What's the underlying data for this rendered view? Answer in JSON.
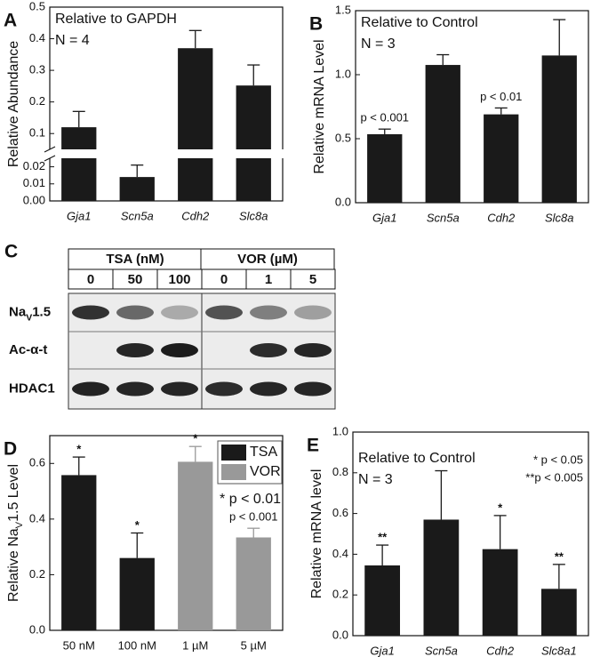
{
  "chart_data": [
    {
      "type": "bar",
      "label": "A",
      "title": "Relative to GAPDH",
      "subtitle": "N = 4",
      "ylabel": "Relative Abundance",
      "categories": [
        "Gja1",
        "Scn5a",
        "Cdh2",
        "Slc8a"
      ],
      "italic_categories": true,
      "values": [
        0.12,
        0.014,
        0.37,
        0.252
      ],
      "errors": [
        0.05,
        0.007,
        0.056,
        0.065
      ],
      "color": "#1a1a1a",
      "ylim_lower": [
        0,
        0.025
      ],
      "yticks_lower": [
        {
          "value": 0,
          "label": "0.00"
        },
        {
          "value": 0.01,
          "label": "0.01"
        },
        {
          "value": 0.02,
          "label": "0.02"
        }
      ],
      "ylim_upper": [
        0.05,
        0.5
      ],
      "yticks_upper": [
        0.1,
        0.2,
        0.3,
        0.4,
        0.5
      ]
    },
    {
      "type": "bar",
      "label": "B",
      "title": "Relative to Control",
      "subtitle": "N = 3",
      "ylabel": "Relative mRNA Level",
      "categories": [
        "Gja1",
        "Scn5a",
        "Cdh2",
        "Slc8a"
      ],
      "italic_categories": true,
      "values": [
        0.535,
        1.076,
        0.69,
        1.15
      ],
      "errors": [
        0.04,
        0.08,
        0.05,
        0.28
      ],
      "color": "#1a1a1a",
      "significance": [
        "p < 0.001",
        null,
        "p < 0.01",
        null
      ],
      "ylim": [
        0,
        1.5
      ],
      "yticks": [
        {
          "value": 0,
          "label": "0.0"
        },
        {
          "value": 0.5,
          "label": "0.5"
        },
        {
          "value": 1,
          "label": "1.0"
        },
        {
          "value": 1.5,
          "label": "1.5"
        }
      ]
    },
    {
      "type": "bar",
      "label": "D",
      "ylabel": [
        "Relative Na",
        "V",
        "1.5 Level"
      ],
      "categories": [
        "50 nM",
        "100 nM",
        "1 µM",
        "5 µM"
      ],
      "italic_categories": false,
      "series": [
        {
          "name": "TSA",
          "color": "#1a1a1a",
          "values": [
            0.558,
            0.26,
            null,
            null
          ],
          "errors": [
            0.065,
            0.09,
            null,
            null
          ]
        },
        {
          "name": "VOR",
          "color": "#999999",
          "values": [
            null,
            null,
            0.606,
            0.334
          ],
          "errors": [
            null,
            null,
            0.055,
            0.033
          ]
        }
      ],
      "significance": [
        "*",
        "*",
        "*",
        "p < 0.001"
      ],
      "notes": [
        "* p < 0.01"
      ],
      "legend": "upper right",
      "ylim": [
        0,
        0.7
      ],
      "yticks": [
        {
          "value": 0,
          "label": "0.0"
        },
        {
          "value": 0.2,
          "label": "0.2"
        },
        {
          "value": 0.4,
          "label": "0.4"
        },
        {
          "value": 0.6,
          "label": "0.6"
        }
      ]
    },
    {
      "type": "bar",
      "label": "E",
      "title": "Relative to Control",
      "subtitle": "N = 3",
      "ylabel": "Relative mRNA level",
      "categories": [
        "Gja1",
        "Scn5a",
        "Cdh2",
        "Slc8a1"
      ],
      "italic_categories": true,
      "values": [
        0.345,
        0.57,
        0.425,
        0.23
      ],
      "errors": [
        0.1,
        0.24,
        0.165,
        0.12
      ],
      "color": "#1a1a1a",
      "significance": [
        "**",
        null,
        "*",
        "**"
      ],
      "notes": [
        "* p < 0.05",
        "**p < 0.005"
      ],
      "ylim": [
        0,
        1
      ],
      "yticks": [
        {
          "value": 0,
          "label": "0.0"
        },
        {
          "value": 0.2,
          "label": "0.2"
        },
        {
          "value": 0.4,
          "label": "0.4"
        },
        {
          "value": 0.6,
          "label": "0.6"
        },
        {
          "value": 0.8,
          "label": "0.8"
        },
        {
          "value": 1,
          "label": "1.0"
        }
      ]
    }
  ],
  "blot": {
    "label": "C",
    "groups": [
      {
        "name": "TSA (nM)",
        "lanes": [
          "0",
          "50",
          "100"
        ]
      },
      {
        "name": "VOR (µM)",
        "lanes": [
          "0",
          "1",
          "5"
        ]
      }
    ],
    "rows": [
      [
        "Na",
        "V",
        "1.5"
      ],
      [
        "Ac-α-t"
      ],
      [
        "HDAC1"
      ]
    ]
  }
}
